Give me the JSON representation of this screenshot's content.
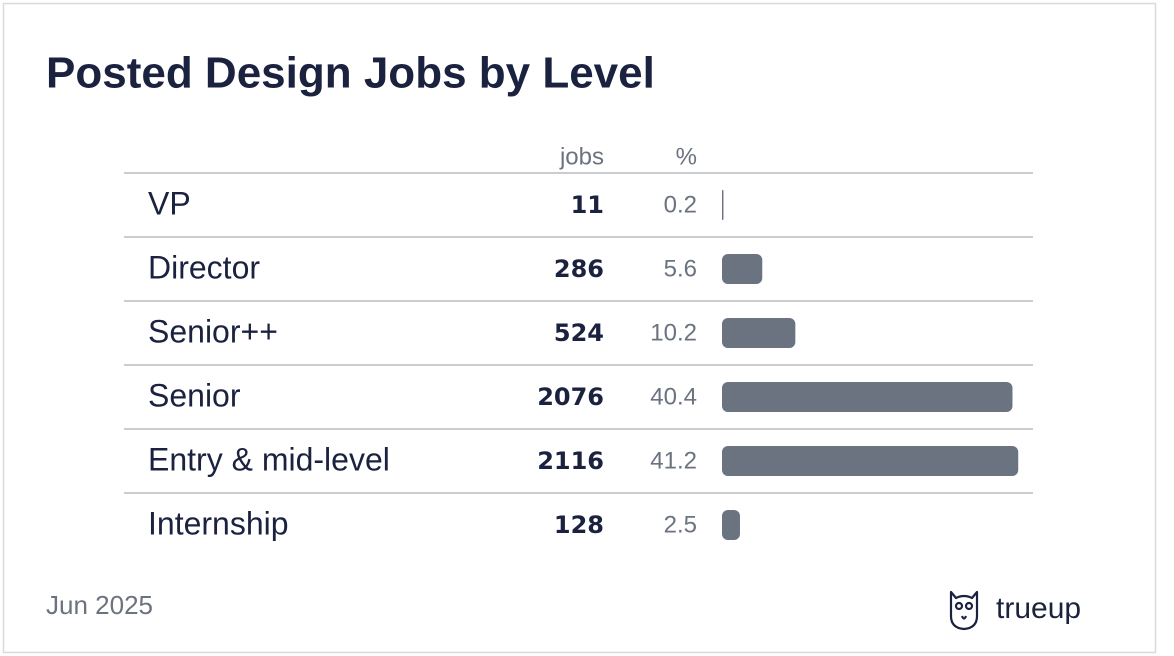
{
  "chart_data": {
    "type": "bar",
    "title": "Posted Design Jobs by Level",
    "categories": [
      "VP",
      "Director",
      "Senior++",
      "Senior",
      "Entry & mid-level",
      "Internship"
    ],
    "columns": [
      "jobs",
      "%"
    ],
    "jobs": [
      11,
      286,
      524,
      2076,
      2116,
      128
    ],
    "values": [
      0.2,
      5.6,
      10.2,
      40.4,
      41.2,
      2.5
    ],
    "color": "#6b7280",
    "date": "Jun 2025",
    "brand": "trueup"
  }
}
